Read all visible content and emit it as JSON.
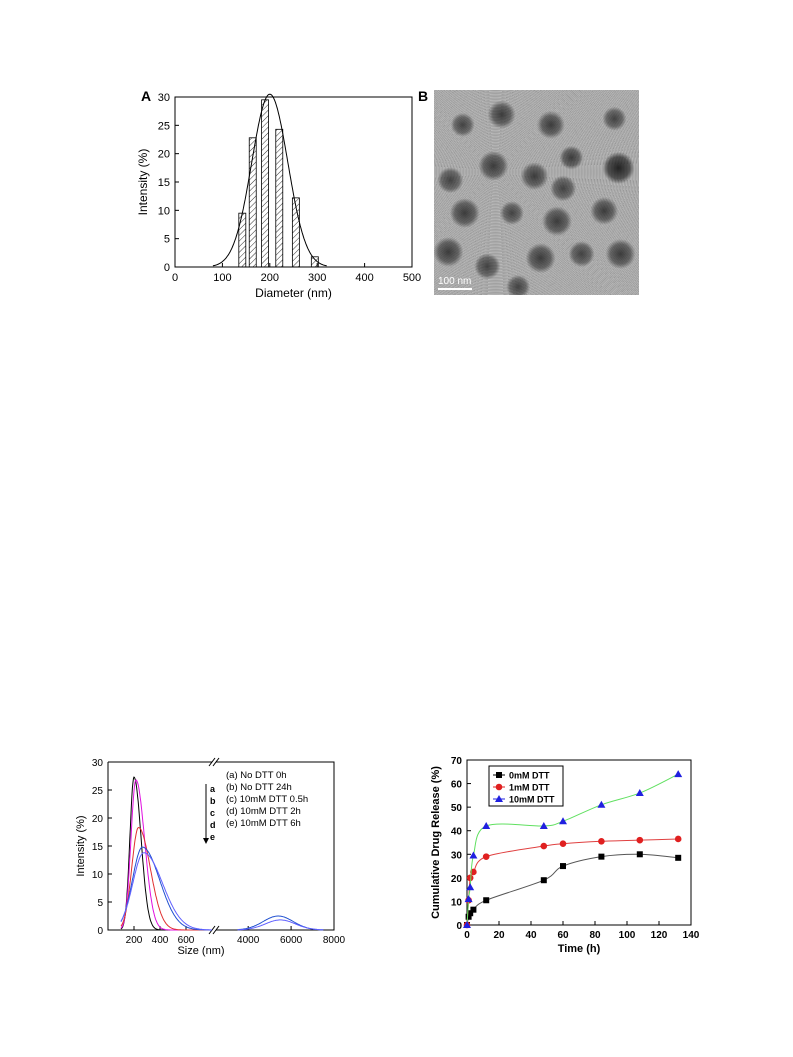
{
  "figure": {
    "panel_a_label": "A",
    "panel_b_label": "B",
    "tem_scale_label": "100 nm"
  },
  "chart_data": [
    {
      "id": "A",
      "type": "bar",
      "xlabel": "Diameter (nm)",
      "ylabel": "Intensity (%)",
      "xlim": [
        0,
        500
      ],
      "ylim": [
        0,
        30
      ],
      "xticks": [
        0,
        100,
        200,
        300,
        400,
        500
      ],
      "yticks": [
        0,
        5,
        10,
        15,
        20,
        25,
        30
      ],
      "bar_centers": [
        142,
        164,
        190,
        220,
        255,
        295
      ],
      "values": [
        9.5,
        22.8,
        29.5,
        24.3,
        12.2,
        1.8
      ],
      "bar_hatch": "diagonal",
      "fit_curve": {
        "type": "gaussian",
        "center": 200,
        "peak": 30.5,
        "sigma": 38
      },
      "grid": false
    },
    {
      "id": "C",
      "type": "line",
      "xlabel": "Size (nm)",
      "ylabel": "Intensity (%)",
      "x_segments": [
        {
          "range": [
            0,
            800
          ],
          "ticks": [
            200,
            400,
            600
          ]
        },
        {
          "range": [
            2500,
            8000
          ],
          "ticks": [
            4000,
            6000,
            8000
          ]
        }
      ],
      "axis_break": true,
      "ylim": [
        0,
        30
      ],
      "yticks": [
        0,
        5,
        10,
        15,
        20,
        25,
        30
      ],
      "legend_position": "top-right",
      "arrow_letters": [
        "a",
        "b",
        "c",
        "d",
        "e"
      ],
      "series": [
        {
          "name": "(a) No DTT 0h",
          "color": "#000000",
          "peak_x": 200,
          "peak_y": 27.3,
          "width": 45,
          "peak2_x": null,
          "peak2_y": 0
        },
        {
          "name": "(b) No DTT 24h",
          "color": "#e010e0",
          "peak_x": 215,
          "peak_y": 26.8,
          "width": 55,
          "peak2_x": null,
          "peak2_y": 0
        },
        {
          "name": "(c) 10mM DTT 0.5h",
          "color": "#e03030",
          "peak_x": 235,
          "peak_y": 18.3,
          "width": 75,
          "peak2_x": null,
          "peak2_y": 0
        },
        {
          "name": "(d) 10mM DTT 2h",
          "color": "#2050d0",
          "peak_x": 265,
          "peak_y": 14.8,
          "width": 110,
          "peak2_x": 5400,
          "peak2_y": 2.5
        },
        {
          "name": "(e) 10mM DTT 6h",
          "color": "#6060ff",
          "peak_x": 275,
          "peak_y": 13.8,
          "width": 120,
          "peak2_x": 5500,
          "peak2_y": 1.8
        }
      ],
      "grid": false
    },
    {
      "id": "D",
      "type": "scatter",
      "xlabel": "Time (h)",
      "ylabel": "Cumulative Drug Release (%)",
      "xlim": [
        0,
        140
      ],
      "ylim": [
        0,
        70
      ],
      "xticks": [
        0,
        20,
        40,
        60,
        80,
        100,
        120,
        140
      ],
      "yticks": [
        0,
        10,
        20,
        30,
        40,
        50,
        60,
        70
      ],
      "legend_position": "top-left",
      "series": [
        {
          "name": "0mM DTT",
          "marker": "square",
          "color": "#000000",
          "line_color": "#555555",
          "x": [
            0,
            1,
            2,
            4,
            12,
            48,
            60,
            84,
            108,
            132
          ],
          "y": [
            0,
            3.5,
            5,
            6.5,
            10.5,
            19,
            25,
            29,
            30,
            28.5
          ]
        },
        {
          "name": "1mM DTT",
          "marker": "circle",
          "color": "#e02020",
          "line_color": "#e04040",
          "x": [
            0,
            1,
            2,
            4,
            12,
            48,
            60,
            84,
            108,
            132
          ],
          "y": [
            0,
            10.5,
            20,
            22.5,
            29,
            33.5,
            34.5,
            35.5,
            36,
            36.5
          ]
        },
        {
          "name": "10mM DTT",
          "marker": "triangle",
          "color": "#2020e0",
          "line_color": "#60e060",
          "x": [
            0,
            1,
            2,
            4,
            12,
            48,
            60,
            84,
            108,
            132
          ],
          "y": [
            0,
            11,
            16,
            29.5,
            42,
            42,
            44,
            51,
            56,
            64
          ]
        }
      ],
      "grid": false
    }
  ]
}
